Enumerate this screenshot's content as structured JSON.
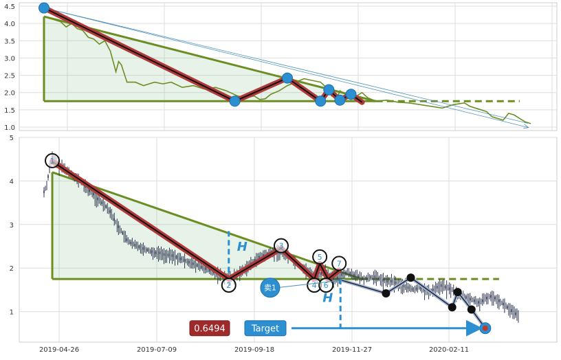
{
  "chart_data": [
    {
      "type": "line",
      "panel": "overview",
      "ylim": [
        0.9,
        4.6
      ],
      "yticks": [
        "1.0",
        "1.5",
        "2.0",
        "2.5",
        "3.0",
        "3.5",
        "4.0",
        "4.5"
      ],
      "grid": true,
      "colors": {
        "price": "#6b8e23",
        "wedge_line": "#6b8e23",
        "pattern": "#b03a3a",
        "marker": "#2b8fd1",
        "arrow": "#4a90b8"
      },
      "price_series": [
        [
          0,
          4.2
        ],
        [
          2,
          4.15
        ],
        [
          4,
          4.1
        ],
        [
          6,
          4.05
        ],
        [
          8,
          3.9
        ],
        [
          10,
          4.0
        ],
        [
          12,
          3.85
        ],
        [
          14,
          3.8
        ],
        [
          16,
          3.6
        ],
        [
          18,
          3.55
        ],
        [
          20,
          3.4
        ],
        [
          22,
          3.5
        ],
        [
          24,
          3.2
        ],
        [
          26,
          2.6
        ],
        [
          27,
          2.9
        ],
        [
          28,
          2.8
        ],
        [
          30,
          2.3
        ],
        [
          33,
          2.3
        ],
        [
          36,
          2.2
        ],
        [
          40,
          2.3
        ],
        [
          43,
          2.25
        ],
        [
          46,
          2.3
        ],
        [
          50,
          2.15
        ],
        [
          54,
          2.2
        ],
        [
          58,
          2.1
        ],
        [
          62,
          2.15
        ],
        [
          66,
          2.05
        ],
        [
          70,
          1.9
        ],
        [
          73,
          1.85
        ],
        [
          76,
          1.9
        ],
        [
          78,
          1.8
        ],
        [
          80,
          1.82
        ],
        [
          82,
          1.95
        ],
        [
          85,
          2.05
        ],
        [
          88,
          2.2
        ],
        [
          91,
          2.3
        ],
        [
          94,
          2.4
        ],
        [
          97,
          2.35
        ],
        [
          100,
          2.3
        ],
        [
          102,
          2.15
        ],
        [
          104,
          1.9
        ],
        [
          106,
          1.85
        ],
        [
          107,
          2.05
        ],
        [
          109,
          1.95
        ],
        [
          111,
          1.8
        ],
        [
          113,
          1.9
        ],
        [
          115,
          2.0
        ],
        [
          117,
          1.85
        ],
        [
          120,
          1.75
        ],
        [
          124,
          1.78
        ],
        [
          128,
          1.72
        ],
        [
          132,
          1.7
        ],
        [
          136,
          1.65
        ],
        [
          140,
          1.6
        ],
        [
          144,
          1.55
        ],
        [
          148,
          1.65
        ],
        [
          152,
          1.7
        ],
        [
          154,
          1.6
        ],
        [
          156,
          1.55
        ],
        [
          158,
          1.5
        ],
        [
          160,
          1.45
        ],
        [
          162,
          1.3
        ],
        [
          164,
          1.25
        ],
        [
          166,
          1.2
        ],
        [
          168,
          1.4
        ],
        [
          170,
          1.35
        ],
        [
          172,
          1.25
        ],
        [
          174,
          1.15
        ],
        [
          176,
          1.1
        ]
      ],
      "pattern_points": [
        [
          0,
          4.45
        ],
        [
          69,
          1.75
        ],
        [
          88,
          2.42
        ],
        [
          100,
          1.75
        ],
        [
          103,
          2.08
        ],
        [
          107,
          1.78
        ],
        [
          111,
          1.95
        ],
        [
          115,
          1.72
        ]
      ],
      "wedge": {
        "upper": [
          [
            0,
            4.2
          ],
          [
            120,
            1.75
          ]
        ],
        "lower": [
          [
            0,
            1.75
          ],
          [
            120,
            1.75
          ]
        ],
        "projection": [
          [
            120,
            1.75
          ],
          [
            172,
            1.75
          ]
        ]
      },
      "arrow": [
        [
          0,
          4.45
        ],
        [
          175,
          1.05
        ]
      ]
    },
    {
      "type": "candlestick",
      "panel": "main",
      "ylim": [
        0.3,
        5.0
      ],
      "yticks": [
        "1",
        "2",
        "3",
        "4",
        "5"
      ],
      "x_tick_labels": [
        "2019-04-26",
        "2019-07-09",
        "2019-09-18",
        "2019-11-27",
        "2020-02-11"
      ],
      "grid": true,
      "close_series": [
        [
          0,
          3.75
        ],
        [
          1,
          3.9
        ],
        [
          2,
          4.3
        ],
        [
          3,
          4.55
        ],
        [
          4,
          4.45
        ],
        [
          6,
          4.35
        ],
        [
          8,
          4.25
        ],
        [
          10,
          4.15
        ],
        [
          12,
          4.05
        ],
        [
          14,
          3.95
        ],
        [
          16,
          3.8
        ],
        [
          18,
          3.7
        ],
        [
          20,
          3.55
        ],
        [
          22,
          3.45
        ],
        [
          24,
          3.3
        ],
        [
          26,
          3.05
        ],
        [
          28,
          2.85
        ],
        [
          30,
          2.65
        ],
        [
          32,
          2.55
        ],
        [
          34,
          2.5
        ],
        [
          36,
          2.45
        ],
        [
          38,
          2.4
        ],
        [
          40,
          2.35
        ],
        [
          42,
          2.35
        ],
        [
          44,
          2.3
        ],
        [
          46,
          2.3
        ],
        [
          48,
          2.25
        ],
        [
          50,
          2.2
        ],
        [
          52,
          2.15
        ],
        [
          54,
          2.1
        ],
        [
          56,
          2.05
        ],
        [
          58,
          2.0
        ],
        [
          60,
          1.95
        ],
        [
          62,
          1.9
        ],
        [
          64,
          1.85
        ],
        [
          66,
          1.8
        ],
        [
          68,
          1.78
        ],
        [
          70,
          1.85
        ],
        [
          72,
          1.95
        ],
        [
          74,
          2.05
        ],
        [
          76,
          2.15
        ],
        [
          78,
          2.25
        ],
        [
          80,
          2.3
        ],
        [
          82,
          2.35
        ],
        [
          84,
          2.4
        ],
        [
          86,
          2.35
        ],
        [
          88,
          2.3
        ],
        [
          90,
          2.2
        ],
        [
          92,
          2.1
        ],
        [
          94,
          2.0
        ],
        [
          96,
          1.9
        ],
        [
          98,
          1.8
        ],
        [
          100,
          1.85
        ],
        [
          102,
          1.95
        ],
        [
          104,
          1.8
        ],
        [
          106,
          1.75
        ],
        [
          108,
          1.85
        ],
        [
          110,
          1.9
        ],
        [
          112,
          1.85
        ],
        [
          114,
          1.8
        ],
        [
          116,
          1.75
        ],
        [
          118,
          1.78
        ],
        [
          120,
          1.8
        ],
        [
          122,
          1.75
        ],
        [
          124,
          1.7
        ],
        [
          126,
          1.7
        ],
        [
          128,
          1.65
        ],
        [
          130,
          1.6
        ],
        [
          132,
          1.55
        ],
        [
          134,
          1.5
        ],
        [
          136,
          1.55
        ],
        [
          138,
          1.5
        ],
        [
          140,
          1.45
        ],
        [
          142,
          1.55
        ],
        [
          144,
          1.6
        ],
        [
          146,
          1.55
        ],
        [
          148,
          1.5
        ],
        [
          150,
          1.4
        ],
        [
          152,
          1.35
        ],
        [
          154,
          1.3
        ],
        [
          156,
          1.25
        ],
        [
          158,
          1.2
        ],
        [
          160,
          1.3
        ],
        [
          162,
          1.35
        ],
        [
          164,
          1.3
        ],
        [
          166,
          1.2
        ],
        [
          168,
          1.1
        ],
        [
          170,
          1.0
        ],
        [
          172,
          0.9
        ],
        [
          174,
          0.8
        ]
      ],
      "pattern": [
        {
          "label": "1",
          "x": 3,
          "y": 4.45
        },
        {
          "label": "2",
          "x": 67,
          "y": 1.75
        },
        {
          "label": "3",
          "x": 86,
          "y": 2.45
        },
        {
          "label": "4",
          "x": 98,
          "y": 1.75
        },
        {
          "label": "5",
          "x": 100,
          "y": 2.1
        },
        {
          "label": "6",
          "x": 103,
          "y": 1.75
        },
        {
          "label": "7",
          "x": 107,
          "y": 1.95
        }
      ],
      "wedge": {
        "upper": [
          [
            3,
            4.2
          ],
          [
            115,
            1.75
          ]
        ],
        "lower": [
          [
            3,
            1.75
          ],
          [
            115,
            1.75
          ]
        ],
        "projection": [
          [
            115,
            1.75
          ],
          [
            165,
            1.75
          ]
        ]
      },
      "height_marker_label": "H",
      "sell_signal": {
        "label": "卖1",
        "x": 82,
        "y": 1.55,
        "anchor": [
          108,
          1.72
        ]
      },
      "forecast_path": [
        [
          108,
          1.72
        ],
        [
          124,
          1.42
        ],
        [
          133,
          1.78
        ],
        [
          148,
          1.1
        ],
        [
          150,
          1.45
        ],
        [
          155,
          1.05
        ],
        [
          160,
          0.62
        ]
      ],
      "target": {
        "label": "Target",
        "value": "0.6494",
        "y": 0.62
      }
    }
  ]
}
